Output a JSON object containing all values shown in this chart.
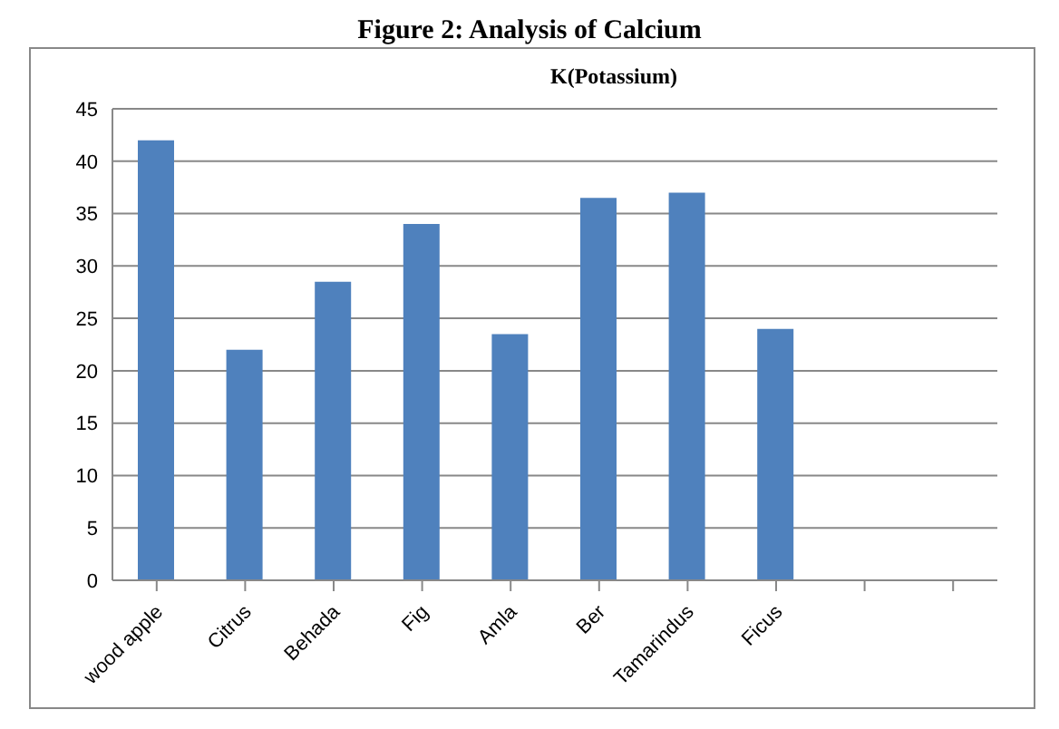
{
  "chart_data": {
    "type": "bar",
    "title": "K(Potassium)",
    "annotations": [
      "Figure 2: Analysis of Calcium"
    ],
    "categories": [
      "wood apple",
      "Citrus",
      "Behada",
      "Fig",
      "Amla",
      "Ber",
      "Tamarindus",
      "Ficus",
      null,
      null
    ],
    "values": [
      42,
      22,
      28.5,
      34,
      23.5,
      36.5,
      37,
      24,
      null,
      null
    ],
    "color": "#4f81bd",
    "ylim": [
      0,
      45
    ],
    "yticks": [
      0,
      5,
      10,
      15,
      20,
      25,
      30,
      35,
      40,
      45
    ],
    "grid": "y",
    "legend": false
  }
}
